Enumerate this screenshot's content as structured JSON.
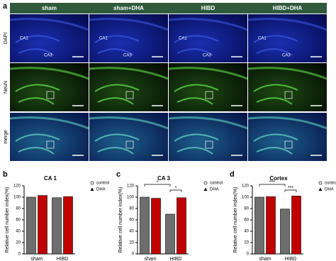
{
  "figure_a": {
    "panel": "a",
    "columns": [
      "sham",
      "sham+DHA",
      "HIBD",
      "HIBD+DHA"
    ],
    "rows": [
      "DAPI",
      "NeuN",
      "merge"
    ],
    "region_labels": [
      "CA1",
      "CA3"
    ]
  },
  "chart_data": [
    {
      "type": "bar",
      "panel": "b",
      "title": "CA 1",
      "ylabel": "Relative cell number index(%)",
      "categories": [
        "sham",
        "HIBD"
      ],
      "series": [
        {
          "name": "control",
          "color": "#6e6e6e",
          "values": [
            100,
            99
          ]
        },
        {
          "name": "DHA",
          "color": "#c00000",
          "values": [
            103,
            101
          ]
        }
      ],
      "ylim": [
        0,
        120
      ],
      "yticks": [
        0,
        20,
        40,
        60,
        80,
        100,
        120
      ],
      "annotations": []
    },
    {
      "type": "bar",
      "panel": "c",
      "title": "CA 3",
      "ylabel": "Relative cell number index(%)",
      "categories": [
        "sham",
        "HIBD"
      ],
      "series": [
        {
          "name": "control",
          "color": "#6e6e6e",
          "values": [
            100,
            70
          ]
        },
        {
          "name": "DHA",
          "color": "#c00000",
          "values": [
            98,
            99
          ]
        }
      ],
      "ylim": [
        0,
        120
      ],
      "yticks": [
        0,
        20,
        40,
        60,
        80,
        100,
        120
      ],
      "annotations": [
        "*",
        "*"
      ]
    },
    {
      "type": "bar",
      "panel": "d",
      "title": "Cortex",
      "ylabel": "Relative cell number index(%)",
      "categories": [
        "sham",
        "HIBD"
      ],
      "series": [
        {
          "name": "control",
          "color": "#6e6e6e",
          "values": [
            100,
            79
          ]
        },
        {
          "name": "DHA",
          "color": "#c00000",
          "values": [
            101,
            102
          ]
        }
      ],
      "ylim": [
        0,
        120
      ],
      "yticks": [
        0,
        20,
        40,
        60,
        80,
        100,
        120
      ],
      "annotations": [
        "***",
        "***"
      ]
    }
  ]
}
